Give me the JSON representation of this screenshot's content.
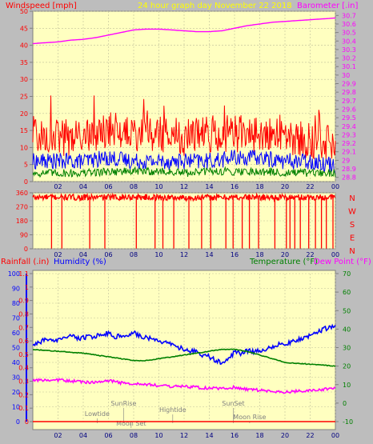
{
  "top_panel": {
    "left_title": "Windspeed [mph]",
    "center_title": "24 hour graph day   November 22 2018",
    "right_title": "Barometer [.in]",
    "left_ticks": [
      "0",
      "5",
      "10",
      "15",
      "20",
      "25",
      "30",
      "35",
      "40",
      "45",
      "50"
    ],
    "right_ticks": [
      "28.8",
      "28.9",
      "29",
      "29.1",
      "29.2",
      "29.3",
      "29.4",
      "29.5",
      "29.6",
      "29.7",
      "29.8",
      "29.9",
      "30",
      "30.1",
      "30.2",
      "30.3",
      "30.4",
      "30.5",
      "30.6",
      "30.7"
    ],
    "x_ticks": [
      "02",
      "04",
      "06",
      "08",
      "10",
      "12",
      "14",
      "16",
      "18",
      "20",
      "22",
      "00"
    ]
  },
  "mid_panel": {
    "left_ticks": [
      "0",
      "90",
      "180",
      "270",
      "360"
    ],
    "right_letters": [
      "N",
      "W",
      "S",
      "E",
      "N"
    ],
    "x_ticks": [
      "02",
      "04",
      "06",
      "08",
      "10",
      "12",
      "14",
      "16",
      "18",
      "20",
      "22",
      "00"
    ]
  },
  "bottom_panel": {
    "left_title_rain": "Rainfall (.in)",
    "left_title_hum": "Humidity (%)",
    "right_title_temp": "Temperature (°F)",
    "right_title_dew": "Dew Point (°F)",
    "rain_ticks": [
      "0",
      "0.1",
      "0.2",
      "0.3",
      "0.4",
      "0.5",
      "0.6",
      "0.7",
      "0.8",
      "0.9",
      "1",
      "1.1"
    ],
    "hum_ticks": [
      "0",
      "10",
      "20",
      "30",
      "40",
      "50",
      "60",
      "70",
      "80",
      "90",
      "100"
    ],
    "temp_ticks": [
      "-10",
      "0",
      "10",
      "20",
      "30",
      "40",
      "50",
      "60",
      "70"
    ],
    "x_ticks": [
      "02",
      "04",
      "06",
      "08",
      "10",
      "12",
      "14",
      "16",
      "18",
      "20",
      "22",
      "00"
    ],
    "annotations": [
      {
        "label": "Lowtide",
        "hour": 5.1
      },
      {
        "label": "SunRise",
        "hour": 7.2
      },
      {
        "label": "Moon Set",
        "hour": 7.8
      },
      {
        "label": "Hightide",
        "hour": 11.1
      },
      {
        "label": "SunSet",
        "hour": 15.9
      },
      {
        "label": "Moon Rise",
        "hour": 17.2
      }
    ]
  },
  "colors": {
    "bg": "#bdbdbd",
    "plot_bg": "#ffffc0",
    "wind_gust": "#ff0000",
    "wind_avg": "#0000ff",
    "wind_low": "#008000",
    "barometer": "#ff00ff",
    "humidity": "#0000ff",
    "temperature": "#008000",
    "dewpoint": "#ff00ff",
    "rain": "#ff0000",
    "title_yellow": "#ffff00"
  },
  "chart_data": [
    {
      "type": "line",
      "title": "24 hour graph day   November 22 2018",
      "ylabel": "Windspeed [mph]",
      "y2label": "Barometer [.in]",
      "ylim": [
        0,
        50
      ],
      "y2lim": [
        28.75,
        30.75
      ],
      "xlim": [
        0,
        24
      ],
      "series": [
        {
          "name": "Barometer [.in]",
          "axis": "right",
          "x": [
            0,
            1,
            2,
            3,
            4,
            5,
            6,
            7,
            8,
            9,
            10,
            11,
            12,
            13,
            14,
            15,
            16,
            17,
            18,
            19,
            20,
            21,
            22,
            23,
            24
          ],
          "values": [
            30.37,
            30.38,
            30.39,
            30.41,
            30.42,
            30.44,
            30.47,
            30.5,
            30.53,
            30.54,
            30.54,
            30.53,
            30.52,
            30.51,
            30.51,
            30.52,
            30.55,
            30.58,
            30.6,
            30.62,
            30.63,
            30.64,
            30.65,
            30.66,
            30.67
          ]
        },
        {
          "name": "Windspeed [mph]",
          "axis": "left",
          "band": "gust",
          "x": [
            0,
            2,
            4,
            6,
            8,
            10,
            12,
            14,
            16,
            18,
            20,
            22,
            24
          ],
          "values": [
            14,
            13,
            13,
            15,
            14,
            14,
            13,
            14,
            14,
            14,
            13,
            12,
            11
          ]
        },
        {
          "name": "Windspeed [mph]",
          "axis": "left",
          "band": "average",
          "x": [
            0,
            2,
            4,
            6,
            8,
            10,
            12,
            14,
            16,
            18,
            20,
            22,
            24
          ],
          "values": [
            6,
            6,
            6,
            7,
            6,
            6,
            6,
            6,
            7,
            7,
            6,
            6,
            5
          ]
        },
        {
          "name": "Windspeed [mph]",
          "axis": "left",
          "band": "low",
          "x": [
            0,
            2,
            4,
            6,
            8,
            10,
            12,
            14,
            16,
            18,
            20,
            22,
            24
          ],
          "values": [
            2.5,
            2.5,
            2.5,
            3,
            3,
            3,
            2.5,
            3,
            3,
            3,
            2.5,
            2.5,
            2.5
          ]
        }
      ]
    },
    {
      "type": "line",
      "ylim": [
        0,
        360
      ],
      "xlim": [
        0,
        24
      ],
      "series": [
        {
          "name": "Wind Direction",
          "base": 330,
          "x": [
            0,
            2,
            4,
            6,
            8,
            10,
            12,
            14,
            16,
            18,
            20,
            22,
            24
          ],
          "values": [
            330,
            332,
            330,
            331,
            333,
            330,
            328,
            330,
            331,
            332,
            330,
            331,
            330
          ],
          "dropouts_hours": [
            1.5,
            2.3,
            4.5,
            5.7,
            8.2,
            9.7,
            10.3,
            11.2,
            12.4,
            13.4,
            14.1,
            15.3,
            15.9,
            16.6,
            17.2,
            17.4,
            17.9,
            18.6,
            19.2,
            20.1,
            20.4,
            20.8,
            21.2,
            21.9,
            22.4,
            22.9,
            23.3,
            23.8
          ]
        }
      ]
    },
    {
      "type": "line",
      "xlim": [
        0,
        24
      ],
      "series": [
        {
          "name": "Humidity (%)",
          "axis": "left",
          "x": [
            0,
            0.5,
            1,
            1.5,
            2,
            2.5,
            3,
            3.5,
            4,
            4.5,
            5,
            5.5,
            6,
            6.5,
            7,
            7.5,
            8,
            8.5,
            9,
            9.5,
            10,
            10.5,
            11,
            11.5,
            12,
            12.5,
            13,
            13.5,
            14,
            14.5,
            15,
            15.5,
            16,
            16.5,
            17,
            17.5,
            18,
            18.5,
            19,
            19.5,
            20,
            20.5,
            21,
            21.5,
            22,
            22.5,
            23,
            23.5,
            24
          ],
          "values": [
            52,
            53,
            56,
            54,
            55,
            57,
            58,
            56,
            57,
            57,
            58,
            59,
            60,
            57,
            58,
            59,
            60,
            58,
            57,
            56,
            54,
            53,
            52,
            50,
            49,
            48,
            47,
            45,
            44,
            41,
            40,
            42,
            47,
            46,
            48,
            47,
            48,
            49,
            50,
            52,
            52,
            54,
            55,
            56,
            58,
            60,
            62,
            64,
            65
          ]
        },
        {
          "name": "Temperature (°F)",
          "axis": "right",
          "x": [
            0,
            1,
            2,
            3,
            4,
            5,
            6,
            7,
            8,
            9,
            10,
            11,
            12,
            13,
            14,
            15,
            16,
            17,
            18,
            19,
            20,
            21,
            22,
            23,
            24
          ],
          "values": [
            29,
            28.5,
            28,
            27.5,
            27,
            26,
            25,
            24,
            23,
            23,
            24,
            25,
            26,
            27,
            28,
            29,
            29,
            28,
            26,
            24,
            22,
            21.5,
            21,
            20.5,
            20
          ]
        },
        {
          "name": "Dew Point (°F)",
          "axis": "right",
          "x": [
            0,
            1,
            2,
            3,
            4,
            5,
            6,
            7,
            8,
            9,
            10,
            11,
            12,
            13,
            14,
            15,
            16,
            17,
            18,
            19,
            20,
            21,
            22,
            23,
            24
          ],
          "values": [
            12,
            12.5,
            12.5,
            12,
            11.5,
            11,
            12,
            11,
            10.5,
            10,
            9.5,
            9,
            9,
            8.5,
            8,
            8,
            8.5,
            7.5,
            7,
            6,
            6,
            6.5,
            7,
            7.5,
            8
          ]
        },
        {
          "name": "Rainfall (.in)",
          "axis": "left2",
          "x": [
            0,
            24
          ],
          "values": [
            0,
            0
          ]
        }
      ],
      "humidity_lim": [
        0,
        100
      ],
      "temp_lim": [
        -10,
        70
      ],
      "rain_lim": [
        0,
        1.1
      ]
    }
  ]
}
